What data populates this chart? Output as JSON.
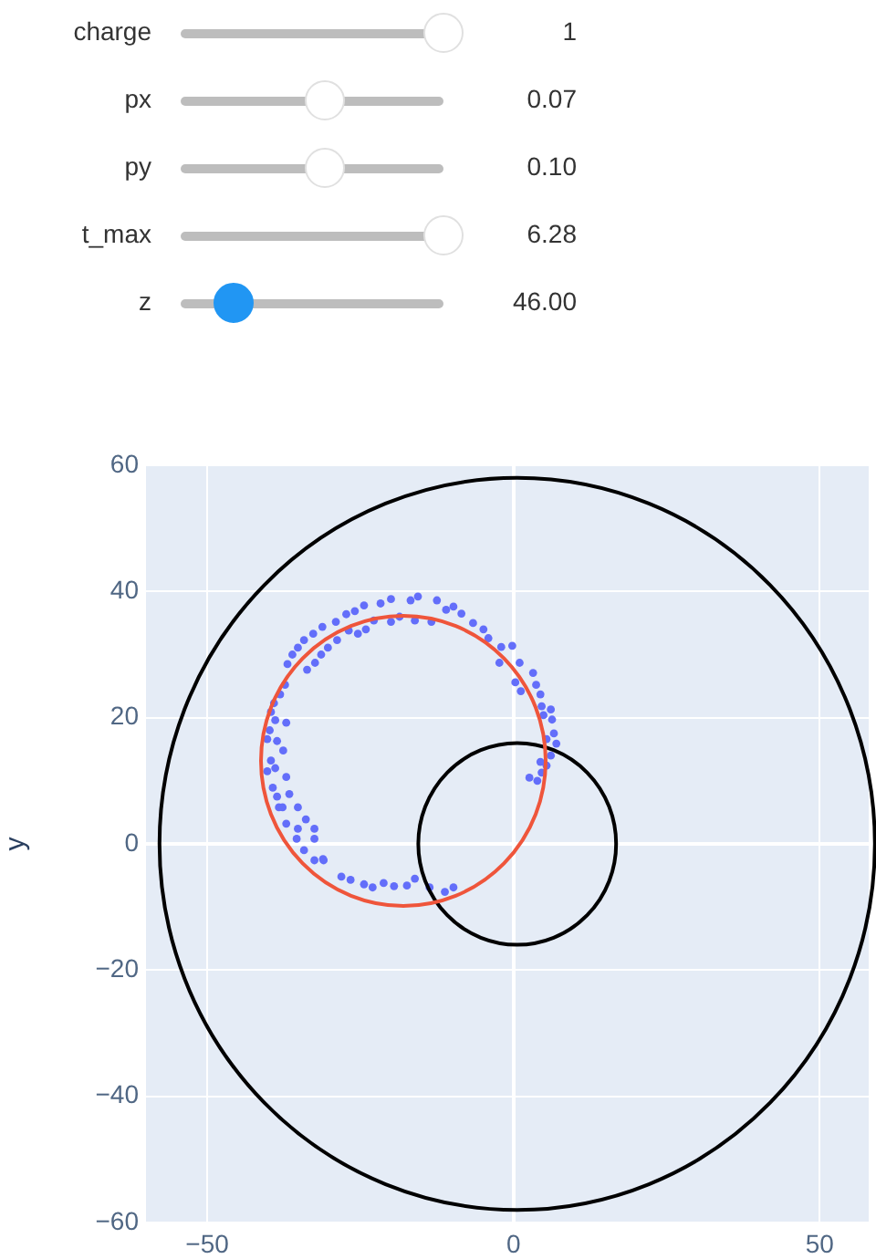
{
  "chart_data": {
    "type": "scatter",
    "ylabel": "y",
    "annotations": [
      "charge",
      "1",
      "px",
      "0.07",
      "py",
      "0.10",
      "t_max",
      "6.28",
      "z",
      "46.00"
    ],
    "xlim": [
      -60,
      58
    ],
    "xticks": [
      {
        "value": -50,
        "label": "−50"
      },
      0,
      50
    ],
    "ylim": [
      -60,
      60
    ],
    "yticks": [
      {
        "value": -60,
        "label": "−60"
      },
      {
        "value": -40,
        "label": "−40"
      },
      {
        "value": -20,
        "label": "−20"
      },
      0,
      20,
      40,
      60
    ],
    "grid": true,
    "legend": false,
    "series": [
      {
        "type": "scatter",
        "marker": "circle",
        "color": "#636efa",
        "x": [
          -15.6,
          -16.8,
          -20,
          -21.7,
          -24.4,
          -25.9,
          -27.3,
          -29,
          -31.2,
          -32.7,
          -34.2,
          -35.2,
          -36.1,
          -36.9,
          -37.3,
          -38.1,
          -39.1,
          -39.6,
          -39.8,
          -40.2,
          -39.6,
          -40.2,
          -39.3,
          -38.3,
          -37.1,
          -35.4,
          -34.2,
          -32.5,
          -31,
          -28.1,
          -26.6,
          -24.4,
          -23,
          -21.2,
          -19.5,
          -17.4,
          -16.1,
          -13.7,
          -11.2,
          -9.8,
          -33.7,
          -32.4,
          -31.4,
          -30.3,
          -28.8,
          -26.9,
          -25.4,
          -24.1,
          -22.8,
          -20,
          -18.6,
          -16.1,
          -13.4,
          -12.5,
          -11,
          -9.8,
          -8.5,
          -6.6,
          -4.9,
          -4.1,
          -2,
          -0.2,
          -2.3,
          1,
          0.3,
          1.2,
          3.2,
          3.7,
          4.4,
          4.6,
          6.1,
          4.9,
          6.3,
          6.6,
          7,
          5.4,
          6.1,
          4.4,
          5.4,
          4.6,
          2.6,
          3.9,
          -38.9,
          -37.1,
          -38.6,
          -37.6,
          -38.9,
          -37.1,
          -38.6,
          -36.6,
          -37.7,
          -35.2,
          -33.9,
          -35.2,
          -32.5,
          -32.5,
          -31.1
        ],
        "values": [
          39.2,
          38.6,
          38.8,
          38.1,
          37.8,
          36.9,
          36.4,
          35.2,
          34.4,
          33.3,
          32.3,
          31.1,
          30,
          28.5,
          25.2,
          23.7,
          22.3,
          20.9,
          18,
          16.6,
          13.2,
          11.5,
          8.9,
          5.8,
          3.2,
          0.8,
          -1,
          -2.6,
          -2.6,
          -5.2,
          -5.7,
          -6.4,
          -6.9,
          -6.2,
          -6.7,
          -6.6,
          -5.5,
          -6.9,
          -7.6,
          -6.9,
          27.6,
          28.7,
          30,
          31.1,
          32.3,
          33.8,
          33.3,
          34,
          35.4,
          35.2,
          36,
          35.4,
          35.2,
          38.6,
          37.1,
          37.6,
          36.5,
          35,
          34,
          32.6,
          31.2,
          31.4,
          28.7,
          28.7,
          25.6,
          24.2,
          27.1,
          25.2,
          23.7,
          21.8,
          21.3,
          20.4,
          19.7,
          17.5,
          15.9,
          16.6,
          14,
          13,
          12.4,
          11.3,
          10.5,
          10,
          19.6,
          19.2,
          16.3,
          14.8,
          12,
          10.6,
          7.5,
          7.9,
          5.8,
          5.8,
          3.9,
          2.4,
          2.4,
          0.8,
          -2.4
        ]
      }
    ]
  }
}
